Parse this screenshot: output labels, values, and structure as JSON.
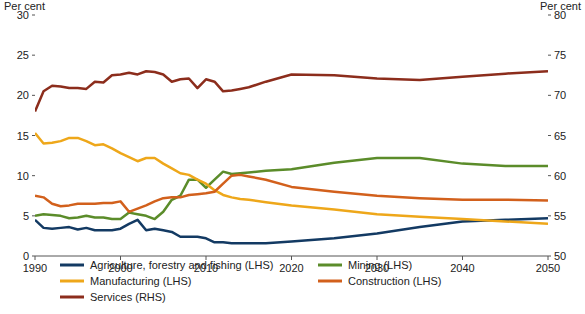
{
  "chart_data": {
    "type": "line",
    "y_label": "Per cent",
    "y2_label": "Per cent",
    "x": [
      1990,
      1991,
      1992,
      1993,
      1994,
      1995,
      1996,
      1997,
      1998,
      1999,
      2000,
      2001,
      2002,
      2003,
      2004,
      2005,
      2006,
      2007,
      2008,
      2009,
      2010,
      2011,
      2012,
      2013,
      2014,
      2015,
      2017,
      2020,
      2025,
      2030,
      2035,
      2040,
      2045,
      2050
    ],
    "xlim": [
      1990,
      2050
    ],
    "xticks": [
      1990,
      2000,
      2010,
      2020,
      2030,
      2040,
      2050
    ],
    "ylim": [
      0,
      30
    ],
    "yticks": [
      0,
      5,
      10,
      15,
      20,
      25,
      30
    ],
    "y2lim": [
      50,
      80
    ],
    "y2ticks": [
      50,
      55,
      60,
      65,
      70,
      75,
      80
    ],
    "grid": false,
    "legend": "bottom",
    "series": [
      {
        "name": "Agriculture, forestry and fishing (LHS)",
        "color": "#133a63",
        "values": [
          4.5,
          3.5,
          3.4,
          3.5,
          3.6,
          3.3,
          3.5,
          3.2,
          3.2,
          3.2,
          3.4,
          4.0,
          4.5,
          3.2,
          3.4,
          3.2,
          3.0,
          2.4,
          2.4,
          2.4,
          2.2,
          1.7,
          1.7,
          1.6,
          1.6,
          1.6,
          1.6,
          1.8,
          2.2,
          2.8,
          3.6,
          4.3,
          4.5,
          4.7
        ]
      },
      {
        "name": "Mining (LHS)",
        "color": "#5b8c2a",
        "values": [
          5.0,
          5.2,
          5.1,
          5.0,
          4.7,
          4.8,
          5.0,
          4.8,
          4.8,
          4.6,
          4.6,
          5.4,
          5.2,
          5.0,
          4.6,
          5.5,
          7.0,
          7.5,
          9.5,
          9.5,
          8.5,
          9.5,
          10.5,
          10.2,
          10.3,
          10.4,
          10.6,
          10.8,
          11.6,
          12.2,
          12.2,
          11.5,
          11.2,
          11.2
        ]
      },
      {
        "name": "Manufacturing (LHS)",
        "color": "#eea71a",
        "values": [
          15.3,
          14.0,
          14.1,
          14.3,
          14.7,
          14.7,
          14.3,
          13.8,
          13.9,
          13.4,
          12.8,
          12.3,
          11.8,
          12.2,
          12.2,
          11.5,
          10.9,
          10.3,
          10.1,
          9.5,
          9.0,
          8.2,
          7.6,
          7.3,
          7.1,
          7.0,
          6.7,
          6.3,
          5.8,
          5.2,
          4.9,
          4.6,
          4.3,
          4.0
        ]
      },
      {
        "name": "Construction (LHS)",
        "color": "#d2601c",
        "values": [
          7.5,
          7.3,
          6.5,
          6.2,
          6.3,
          6.5,
          6.5,
          6.5,
          6.6,
          6.6,
          6.8,
          5.5,
          5.9,
          6.3,
          6.8,
          7.2,
          7.3,
          7.3,
          7.6,
          7.7,
          7.8,
          8.0,
          9.0,
          10.0,
          10.1,
          9.9,
          9.5,
          8.6,
          8.0,
          7.5,
          7.2,
          7.0,
          7.0,
          6.9
        ]
      },
      {
        "name": "Services (RHS)",
        "color": "#8c2d1c",
        "axis": "y2",
        "values": [
          68,
          70.5,
          71.2,
          71.1,
          70.9,
          70.9,
          70.8,
          71.7,
          71.6,
          72.5,
          72.6,
          72.8,
          72.6,
          73.0,
          72.9,
          72.6,
          71.7,
          72.0,
          72.1,
          70.9,
          72.0,
          71.7,
          70.5,
          70.6,
          70.8,
          71.0,
          71.7,
          72.6,
          72.5,
          72.1,
          71.9,
          72.3,
          72.7,
          73.0
        ]
      }
    ]
  }
}
